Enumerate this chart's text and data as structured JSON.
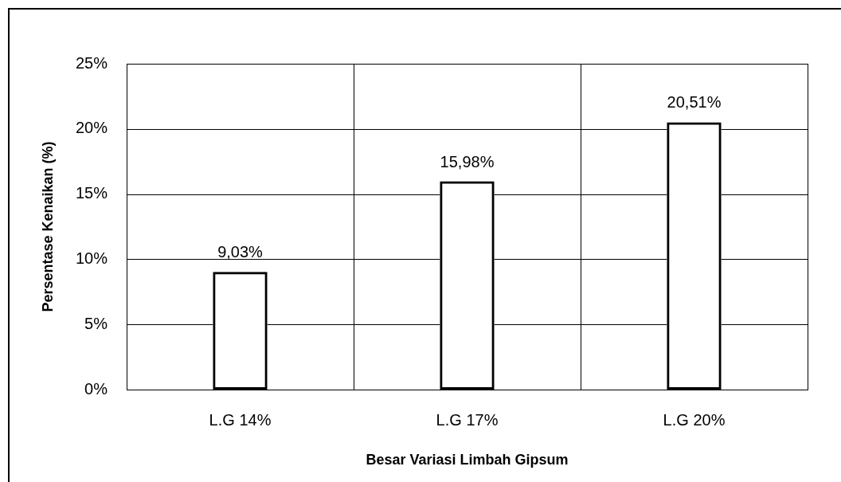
{
  "chart_data": {
    "type": "bar",
    "xlabel": "Besar Variasi Limbah Gipsum",
    "ylabel": "Persentase Kenaikan (%)",
    "categories": [
      "L.G 14%",
      "L.G 17%",
      "L.G 20%"
    ],
    "values": [
      9.03,
      15.98,
      20.51
    ],
    "value_labels": [
      "9,03%",
      "15,98%",
      "20,51%"
    ],
    "color": "#000000",
    "ylim": [
      0,
      25
    ],
    "yticks": [
      {
        "value": 0,
        "label": "0%"
      },
      {
        "value": 5,
        "label": "5%"
      },
      {
        "value": 10,
        "label": "10%"
      },
      {
        "value": 15,
        "label": "15%"
      },
      {
        "value": 20,
        "label": "20%"
      },
      {
        "value": 25,
        "label": "25%"
      }
    ],
    "grid": true
  }
}
